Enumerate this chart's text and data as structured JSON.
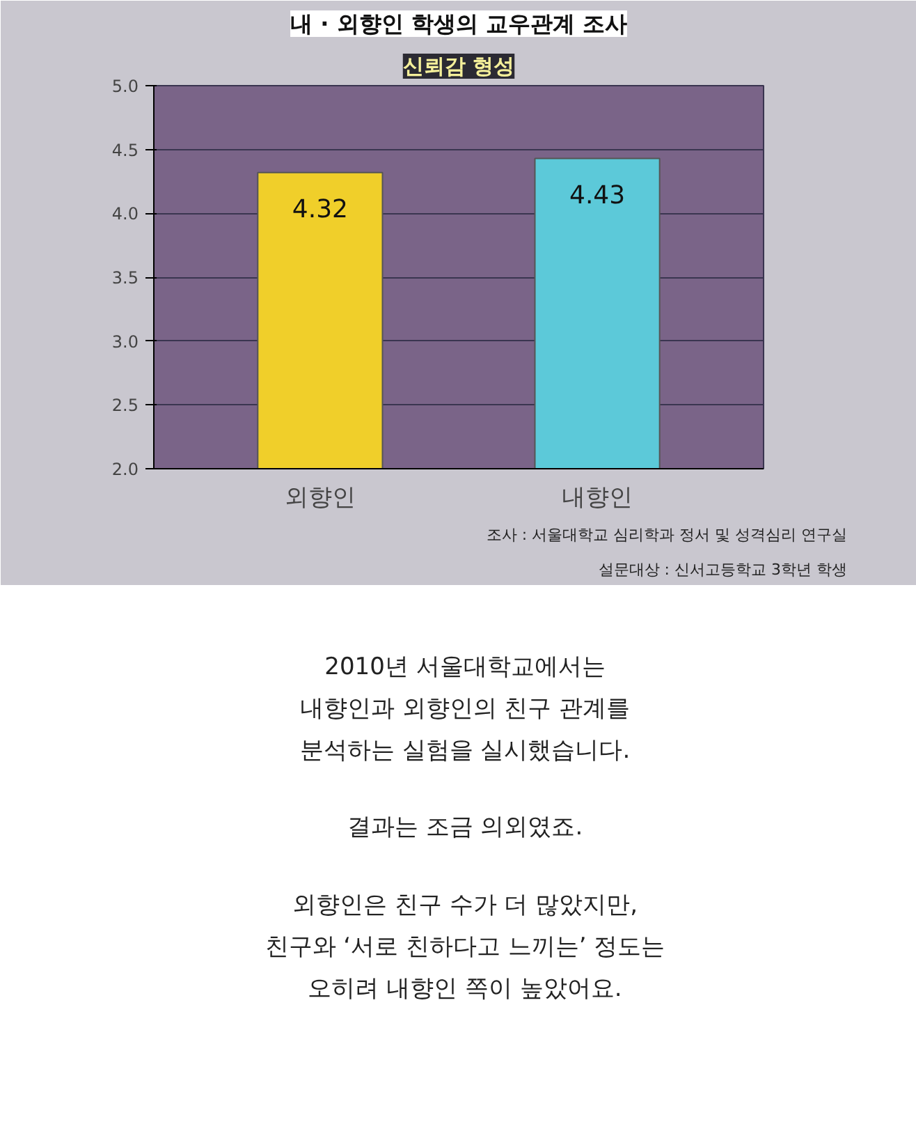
{
  "chart_data": {
    "type": "bar",
    "title": "내 · 외향인 학생의 교우관계 조사",
    "subtitle": "신뢰감 형성",
    "categories": [
      "외향인",
      "내향인"
    ],
    "values": [
      4.32,
      4.43
    ],
    "colors": [
      "#f0cf2a",
      "#5cc9d9"
    ],
    "ylim": [
      2.0,
      5.0
    ],
    "yticks": [
      {
        "value": 2.0,
        "label": "2.0"
      },
      {
        "value": 2.5,
        "label": "2.5"
      },
      {
        "value": 3.0,
        "label": "3.0"
      },
      {
        "value": 3.5,
        "label": "3.5"
      },
      {
        "value": 4.0,
        "label": "4.0"
      },
      {
        "value": 4.5,
        "label": "4.5"
      },
      {
        "value": 5.0,
        "label": "5.0"
      }
    ],
    "grid": "y",
    "data_labels": true,
    "annotations": [
      "조사 : 서울대학교 심리학과 정서 및 성격심리 연구실",
      "설문대상 : 신서고등학교 3학년 학생",
      "2010년 서울대학교에서는\n내향인과 외향인의 친구 관계를\n분석하는 실험을 실시했습니다.",
      "결과는 조금 의외였죠.",
      "외향인은 친구 수가 더 많았지만,\n친구와 ‘서로 친하다고 느끼는’ 정도는\n오히려 내향인 쪽이 높았어요."
    ]
  }
}
